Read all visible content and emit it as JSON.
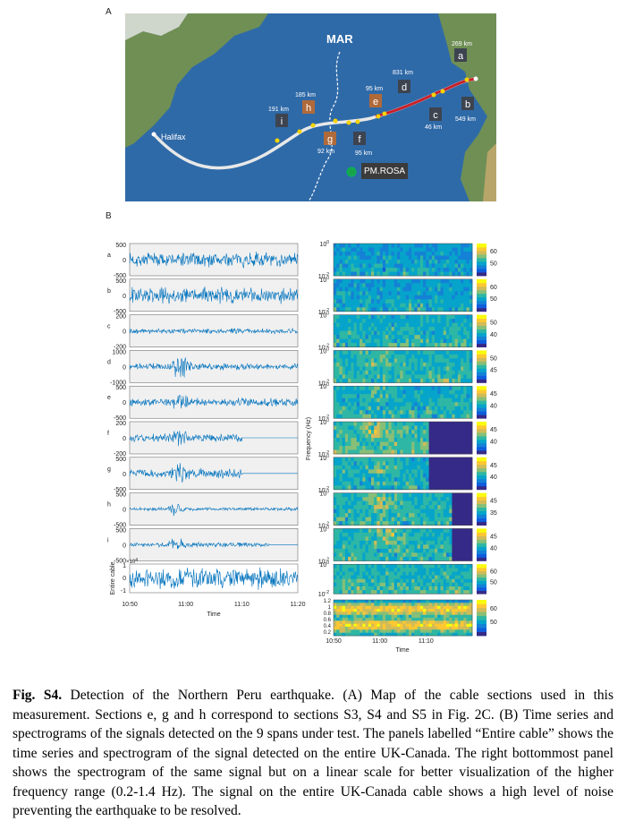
{
  "panel_a": {
    "label": "A",
    "map_labels": {
      "ridge": "MAR",
      "start": "Halifax",
      "station": "PM.ROSA"
    },
    "sections": [
      {
        "id": "a",
        "km": "269 km"
      },
      {
        "id": "b",
        "km": "549 km"
      },
      {
        "id": "c",
        "km": "46 km"
      },
      {
        "id": "d",
        "km": "831 km"
      },
      {
        "id": "e",
        "km": "95 km"
      },
      {
        "id": "f",
        "km": "95 km"
      },
      {
        "id": "g",
        "km": "92 km"
      },
      {
        "id": "h",
        "km": "185 km"
      },
      {
        "id": "i",
        "km": "191 km"
      }
    ]
  },
  "panel_b": {
    "label": "B",
    "time_series": {
      "rows": [
        {
          "id": "a",
          "yticks": [
            "500",
            "0",
            "-500"
          ]
        },
        {
          "id": "b",
          "yticks": [
            "500",
            "0",
            "-500"
          ]
        },
        {
          "id": "c",
          "yticks": [
            "200",
            "0",
            "-200"
          ]
        },
        {
          "id": "d",
          "yticks": [
            "1000",
            "0",
            "-1000"
          ]
        },
        {
          "id": "e",
          "yticks": [
            "500",
            "0",
            "-500"
          ]
        },
        {
          "id": "f",
          "yticks": [
            "200",
            "0",
            "-200"
          ]
        },
        {
          "id": "g",
          "yticks": [
            "500",
            "0",
            "-500"
          ]
        },
        {
          "id": "h",
          "yticks": [
            "500",
            "0",
            "-500"
          ]
        },
        {
          "id": "i",
          "yticks": [
            "500",
            "0",
            "-500"
          ]
        }
      ],
      "entire": {
        "label": "Entire cable",
        "yticks": [
          "1",
          "0",
          "-1"
        ],
        "multiplier": "×10",
        "multiplier_exp": "4"
      },
      "xticks": [
        "10:50",
        "11:00",
        "11:10",
        "11:20"
      ],
      "xlabel": "Time"
    },
    "spectrograms": {
      "ylabel": "Frequency (Hz)",
      "yticks": [
        {
          "base": "10",
          "exp": "0"
        },
        {
          "base": "10",
          "exp": "-2"
        }
      ],
      "rows": [
        {
          "colorbar_ticks": [
            "60",
            "50"
          ]
        },
        {
          "colorbar_ticks": [
            "60",
            "50"
          ]
        },
        {
          "colorbar_ticks": [
            "50",
            "40"
          ]
        },
        {
          "colorbar_ticks": [
            "50",
            "45"
          ]
        },
        {
          "colorbar_ticks": [
            "45",
            "40"
          ]
        },
        {
          "colorbar_ticks": [
            "45",
            "40"
          ]
        },
        {
          "colorbar_ticks": [
            "45",
            "40"
          ]
        },
        {
          "colorbar_ticks": [
            "45",
            "35"
          ]
        },
        {
          "colorbar_ticks": [
            "45",
            "40"
          ]
        },
        {
          "colorbar_ticks": [
            "60",
            "50"
          ]
        }
      ],
      "linear": {
        "yticks": [
          "1.2",
          "1",
          "0.8",
          "0.6",
          "0.4",
          "0.2"
        ],
        "colorbar_ticks": [
          "60",
          "50"
        ]
      },
      "xticks": [
        "10:50",
        "11:00",
        "11:10"
      ],
      "xlabel": "Time"
    }
  },
  "caption": {
    "label": "Fig. S4.",
    "text": " Detection of the Northern Peru earthquake. (A) Map of the cable sections used in this measurement. Sections e, g and h correspond to sections S3, S4 and S5 in Fig. 2C. (B) Time series and spectrograms of the signals detected on the 9 spans under test. The panels labelled “Entire cable” shows the time series and spectrogram of the signal detected on the entire UK-Canada. The right bottommost panel shows the spectrogram of the same signal but on a linear scale for better visualization of the higher frequency range (0.2-1.4 Hz). The signal on the entire UK-Canada cable shows a high level of noise preventing the earthquake to be resolved."
  }
}
